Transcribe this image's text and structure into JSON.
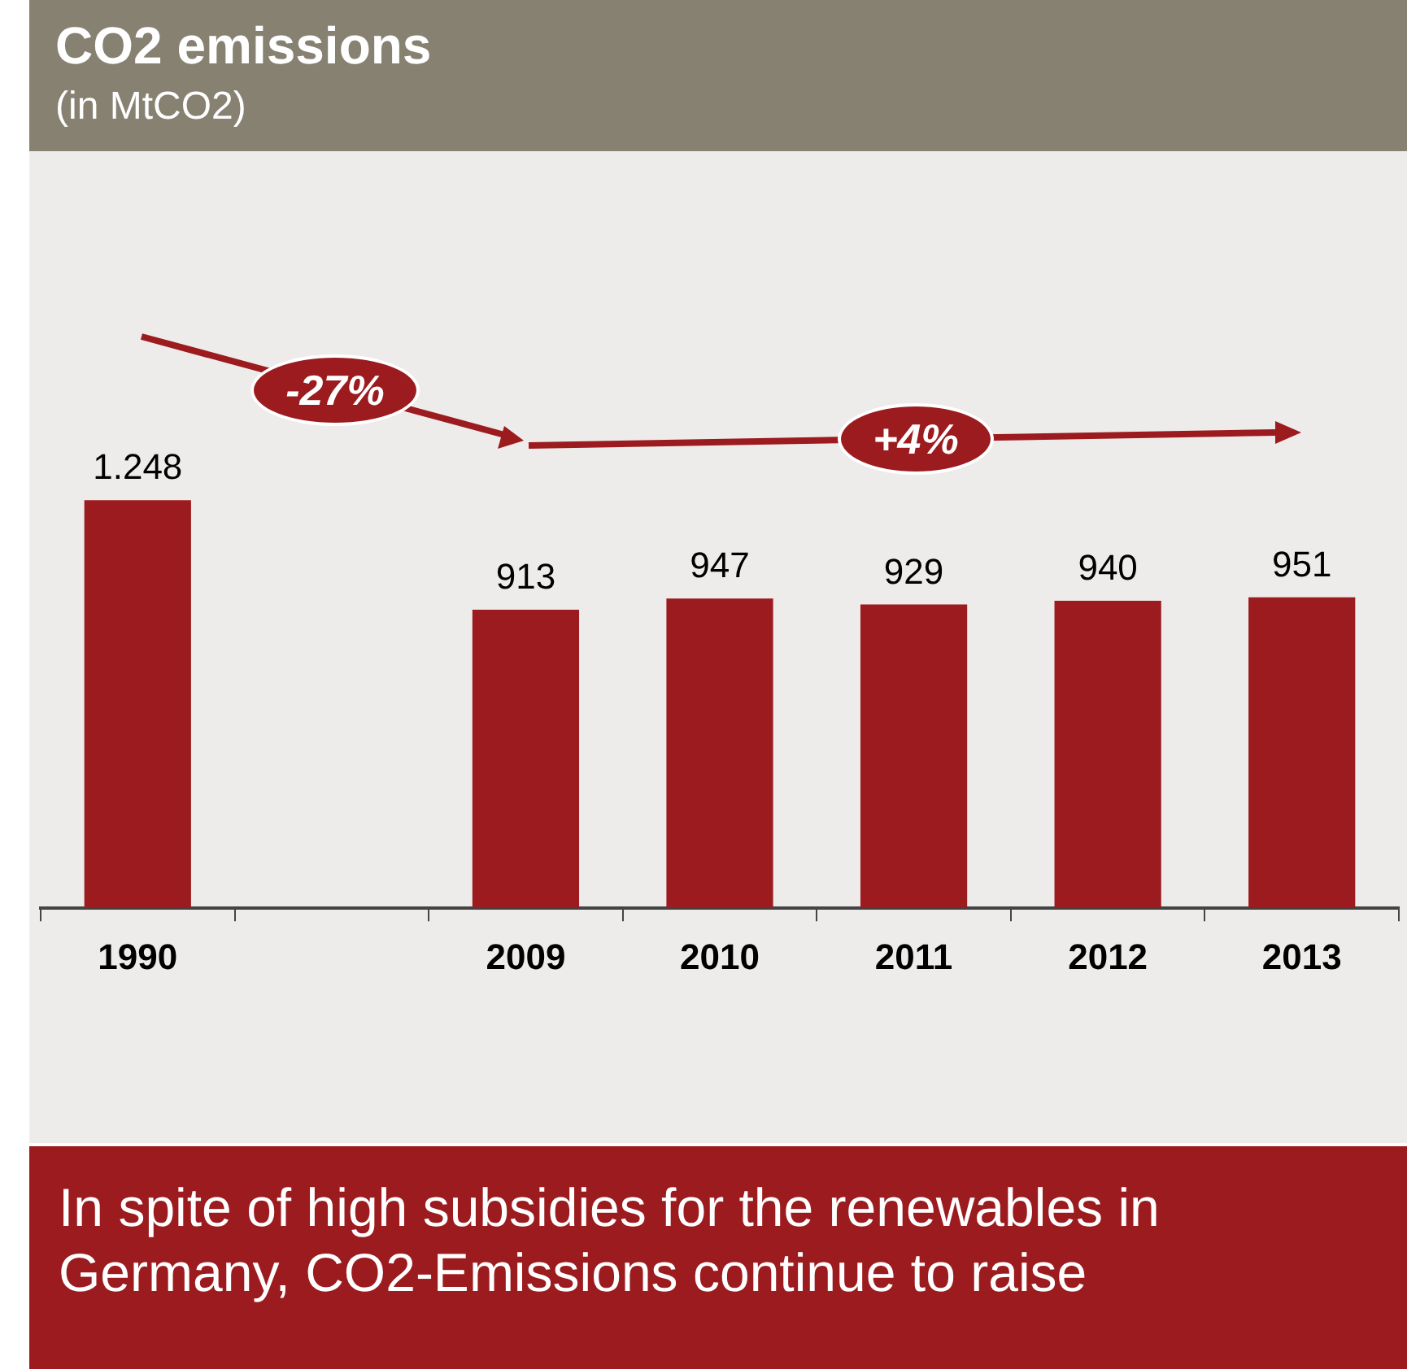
{
  "chart_data": {
    "type": "bar",
    "title": "CO2 emissions",
    "subtitle": "(in MtCO2)",
    "categories": [
      "1990",
      null,
      "2009",
      "2010",
      "2011",
      "2012",
      "2013"
    ],
    "values": [
      1248,
      null,
      913,
      947,
      929,
      940,
      951
    ],
    "value_labels": [
      "1.248",
      null,
      "913",
      "947",
      "929",
      "940",
      "951"
    ],
    "color": "#9b1b1e",
    "annotations": [
      "-27%",
      "+4%",
      "In spite of high subsidies for the renewables in Germany, CO2-Emissions continue to raise"
    ]
  }
}
